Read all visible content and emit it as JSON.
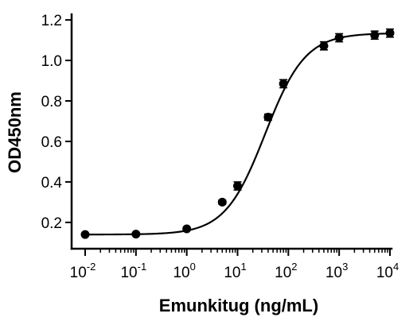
{
  "chart_data": {
    "type": "scatter",
    "xlabel": "Emunkitug (ng/mL)",
    "ylabel": "OD450nm",
    "xscale": "log",
    "xlim": [
      0.01,
      10000
    ],
    "ylim": [
      0.07,
      1.22
    ],
    "x_ticks": [
      {
        "base": "10",
        "exp": "-2",
        "value": 0.01
      },
      {
        "base": "10",
        "exp": "-1",
        "value": 0.1
      },
      {
        "base": "10",
        "exp": "0",
        "value": 1
      },
      {
        "base": "10",
        "exp": "1",
        "value": 10
      },
      {
        "base": "10",
        "exp": "2",
        "value": 100
      },
      {
        "base": "10",
        "exp": "3",
        "value": 1000
      },
      {
        "base": "10",
        "exp": "4",
        "value": 10000
      }
    ],
    "y_ticks": [
      {
        "label": "0.2",
        "value": 0.2
      },
      {
        "label": "0.4",
        "value": 0.4
      },
      {
        "label": "0.6",
        "value": 0.6
      },
      {
        "label": "0.8",
        "value": 0.8
      },
      {
        "label": "1.0",
        "value": 1.0
      },
      {
        "label": "1.2",
        "value": 1.2
      }
    ],
    "series": [
      {
        "points": [
          {
            "x": 0.01,
            "y": 0.14,
            "err": 0.005
          },
          {
            "x": 0.1,
            "y": 0.142,
            "err": 0.005
          },
          {
            "x": 1,
            "y": 0.168,
            "err": 0.006
          },
          {
            "x": 5,
            "y": 0.3,
            "err": 0.01
          },
          {
            "x": 10,
            "y": 0.38,
            "err": 0.02
          },
          {
            "x": 40,
            "y": 0.72,
            "err": 0.015
          },
          {
            "x": 80,
            "y": 0.885,
            "err": 0.02
          },
          {
            "x": 500,
            "y": 1.072,
            "err": 0.02
          },
          {
            "x": 1000,
            "y": 1.112,
            "err": 0.02
          },
          {
            "x": 5000,
            "y": 1.125,
            "err": 0.02
          },
          {
            "x": 10000,
            "y": 1.135,
            "err": 0.02
          }
        ],
        "fit": {
          "model": "4PL",
          "bottom": 0.14,
          "top": 1.135,
          "ec50": 35,
          "hill": 1.1
        }
      }
    ],
    "grid": false,
    "legend": "none"
  },
  "colors": {
    "marks": "#000000"
  }
}
